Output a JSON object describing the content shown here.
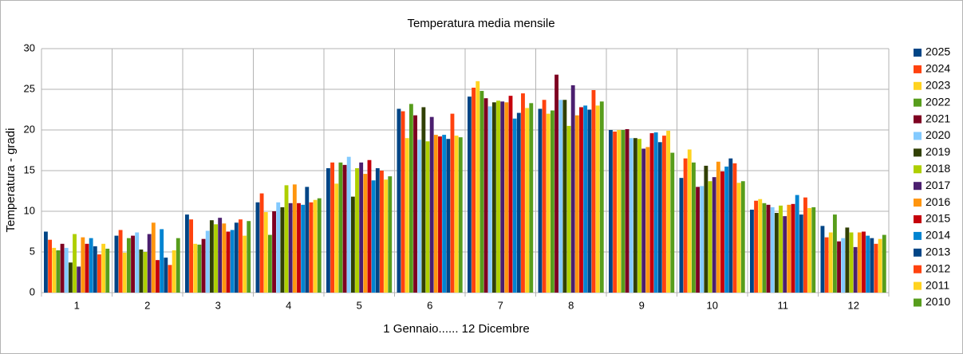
{
  "chart_data": {
    "type": "bar",
    "title": "Temperatura media  mensile",
    "x_label": "1 Gennaio...... 12 Dicembre",
    "y_label": "Temperatura - gradi",
    "categories": [
      "1",
      "2",
      "3",
      "4",
      "5",
      "6",
      "7",
      "8",
      "9",
      "10",
      "11",
      "12"
    ],
    "ylim": [
      0,
      30
    ],
    "yticks": [
      0,
      5,
      10,
      15,
      20,
      25,
      30
    ],
    "grid": true,
    "legend": "right",
    "series": [
      {
        "name": "2025",
        "color": "#004586",
        "values": [
          7.5,
          7.0,
          9.6,
          11.1,
          15.3,
          22.6,
          24.1,
          22.6,
          20.0,
          14.1,
          10.2,
          8.2
        ]
      },
      {
        "name": "2024",
        "color": "#ff420e",
        "values": [
          6.5,
          7.7,
          9.0,
          12.2,
          16.0,
          22.3,
          25.2,
          23.7,
          19.8,
          16.5,
          11.3,
          6.8
        ]
      },
      {
        "name": "2023",
        "color": "#ffd320",
        "values": [
          5.5,
          4.9,
          6.0,
          9.9,
          13.4,
          19.0,
          26.0,
          22.0,
          20.0,
          17.6,
          11.5,
          7.4
        ]
      },
      {
        "name": "2022",
        "color": "#579d1c",
        "values": [
          5.2,
          6.7,
          5.9,
          7.1,
          16.0,
          23.2,
          24.8,
          22.4,
          20.0,
          16.0,
          11.0,
          9.6
        ]
      },
      {
        "name": "2021",
        "color": "#7e0021",
        "values": [
          6.0,
          7.0,
          6.6,
          10.0,
          15.7,
          21.8,
          23.9,
          26.8,
          20.1,
          13.0,
          10.8,
          6.3
        ]
      },
      {
        "name": "2020",
        "color": "#83caff",
        "values": [
          5.5,
          7.4,
          7.6,
          11.1,
          16.7,
          18.8,
          22.9,
          23.7,
          19.0,
          13.1,
          10.5,
          6.7
        ]
      },
      {
        "name": "2019",
        "color": "#314004",
        "values": [
          3.7,
          5.3,
          8.9,
          10.5,
          11.8,
          22.8,
          23.4,
          23.7,
          19.0,
          15.6,
          9.8,
          8.0
        ]
      },
      {
        "name": "2018",
        "color": "#aecf00",
        "values": [
          7.2,
          5.0,
          8.4,
          13.2,
          15.3,
          18.6,
          23.6,
          20.5,
          18.9,
          13.7,
          10.7,
          7.4
        ]
      },
      {
        "name": "2017",
        "color": "#4b1f6f",
        "values": [
          3.2,
          7.2,
          9.2,
          11.0,
          16.0,
          21.6,
          23.5,
          25.5,
          17.7,
          14.2,
          9.4,
          5.6
        ]
      },
      {
        "name": "2016",
        "color": "#ff950e",
        "values": [
          6.8,
          8.6,
          8.5,
          13.3,
          14.6,
          19.4,
          23.4,
          21.8,
          17.9,
          16.1,
          10.8,
          7.4
        ]
      },
      {
        "name": "2015",
        "color": "#c5000b",
        "values": [
          6.0,
          4.0,
          7.5,
          11.0,
          16.3,
          19.2,
          24.2,
          22.8,
          19.6,
          14.9,
          10.9,
          7.5
        ]
      },
      {
        "name": "2014",
        "color": "#0084d1",
        "values": [
          6.7,
          7.8,
          7.7,
          10.8,
          13.8,
          19.4,
          21.4,
          23.0,
          19.7,
          15.5,
          12.0,
          7.0
        ]
      },
      {
        "name": "2013",
        "color": "#004586",
        "values": [
          5.7,
          4.3,
          8.6,
          13.0,
          15.3,
          18.9,
          22.1,
          22.5,
          18.5,
          16.5,
          9.6,
          6.7
        ]
      },
      {
        "name": "2012",
        "color": "#ff420e",
        "values": [
          4.7,
          3.4,
          9.0,
          11.1,
          15.0,
          22.0,
          24.5,
          24.9,
          19.3,
          15.9,
          11.7,
          6.0
        ]
      },
      {
        "name": "2011",
        "color": "#ffd320",
        "values": [
          6.0,
          5.2,
          7.0,
          11.4,
          13.9,
          19.3,
          22.7,
          23.0,
          19.9,
          13.5,
          10.4,
          6.6
        ]
      },
      {
        "name": "2010",
        "color": "#579d1c",
        "values": [
          5.4,
          6.7,
          8.8,
          11.6,
          14.3,
          19.1,
          23.3,
          23.5,
          17.2,
          13.7,
          10.5,
          7.1
        ]
      }
    ]
  }
}
